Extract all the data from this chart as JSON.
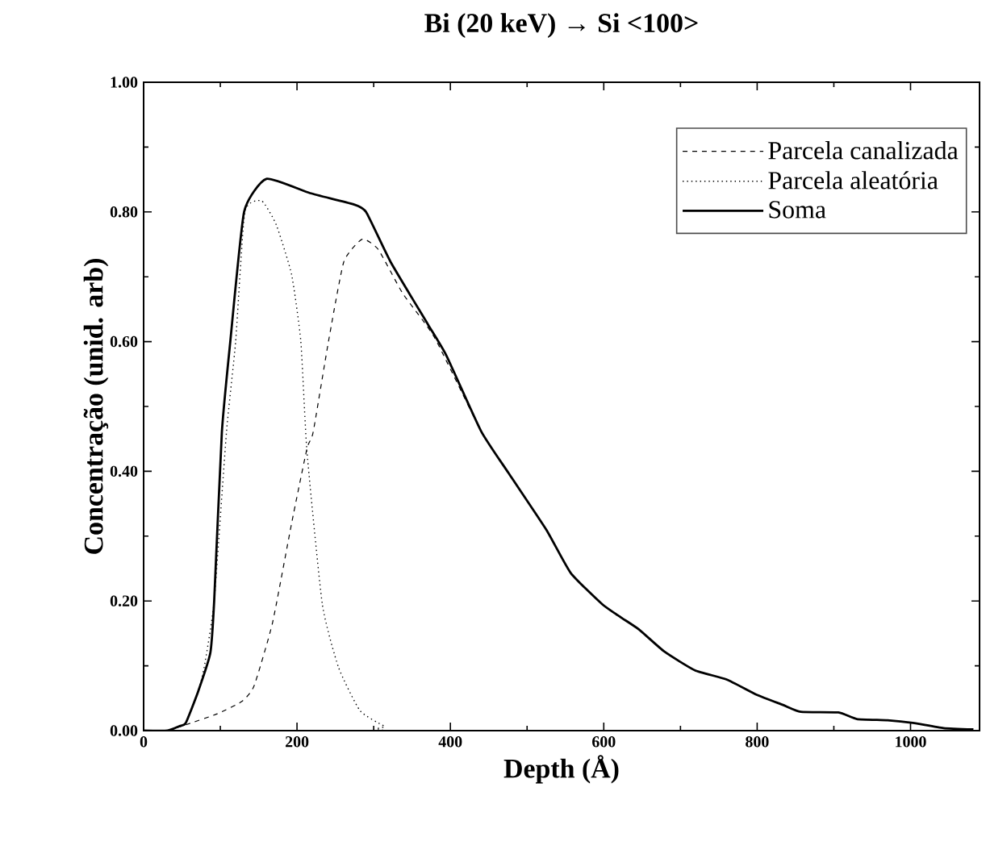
{
  "chart_data": {
    "type": "line",
    "title": "Bi (20 keV)   →   Si <100>",
    "xlabel": "Depth (Å)",
    "ylabel": "Concentração (unid. arb)",
    "xlim": [
      0,
      1090
    ],
    "ylim": [
      0,
      1
    ],
    "xticks": [
      0,
      200,
      400,
      600,
      800,
      1000
    ],
    "yticks": [
      {
        "value": 0,
        "label": "0.00"
      },
      {
        "value": 0.2,
        "label": "0.20"
      },
      {
        "value": 0.4,
        "label": "0.40"
      },
      {
        "value": 0.6,
        "label": "0.60"
      },
      {
        "value": 0.8,
        "label": "0.80"
      },
      {
        "value": 1,
        "label": "1.00"
      }
    ],
    "legend": "top right",
    "grid": false,
    "marker": "none",
    "series": [
      {
        "name": "Parcela canalizada",
        "color": "#000000",
        "line_style": "dashed",
        "x": [
          31,
          55,
          96,
          128,
          144,
          168,
          193,
          213,
          221,
          241,
          261,
          285,
          306,
          338,
          379,
          440,
          476,
          525,
          557,
          598,
          622,
          646,
          679,
          719,
          760,
          800,
          833,
          857,
          906,
          930,
          970,
          1003,
          1043,
          1082
        ],
        "values": [
          0,
          0.009,
          0.026,
          0.045,
          0.069,
          0.166,
          0.32,
          0.435,
          0.46,
          0.6,
          0.723,
          0.758,
          0.742,
          0.674,
          0.607,
          0.462,
          0.397,
          0.31,
          0.243,
          0.195,
          0.175,
          0.156,
          0.122,
          0.093,
          0.079,
          0.055,
          0.04,
          0.029,
          0.028,
          0.018,
          0.016,
          0.012,
          0.004,
          0.002
        ]
      },
      {
        "name": "Parcela aleatória",
        "color": "#000000",
        "line_style": "dotted",
        "x": [
          31,
          47,
          55,
          71,
          79,
          92,
          108,
          120,
          132,
          154,
          173,
          193,
          205,
          213,
          233,
          254,
          282,
          314,
          339,
          1090
        ],
        "values": [
          0,
          0.007,
          0.012,
          0.06,
          0.098,
          0.2,
          0.46,
          0.6,
          0.8,
          0.817,
          0.78,
          0.703,
          0.6,
          0.43,
          0.195,
          0.098,
          0.031,
          0.007,
          0,
          0
        ]
      },
      {
        "name": "Soma",
        "color": "#000000",
        "line_style": "solid",
        "x": [
          0,
          31,
          47,
          55,
          71,
          87,
          92,
          102,
          113,
          131,
          160,
          217,
          273,
          290,
          322,
          371,
          395,
          440,
          476,
          525,
          557,
          598,
          622,
          646,
          679,
          719,
          760,
          800,
          833,
          857,
          906,
          930,
          970,
          1003,
          1043,
          1082
        ],
        "values": [
          0,
          0,
          0.007,
          0.012,
          0.06,
          0.12,
          0.2,
          0.46,
          0.6,
          0.8,
          0.851,
          0.829,
          0.812,
          0.8,
          0.723,
          0.626,
          0.578,
          0.462,
          0.397,
          0.31,
          0.243,
          0.195,
          0.175,
          0.156,
          0.122,
          0.093,
          0.079,
          0.055,
          0.04,
          0.029,
          0.028,
          0.018,
          0.016,
          0.012,
          0.004,
          0.002
        ]
      }
    ]
  }
}
